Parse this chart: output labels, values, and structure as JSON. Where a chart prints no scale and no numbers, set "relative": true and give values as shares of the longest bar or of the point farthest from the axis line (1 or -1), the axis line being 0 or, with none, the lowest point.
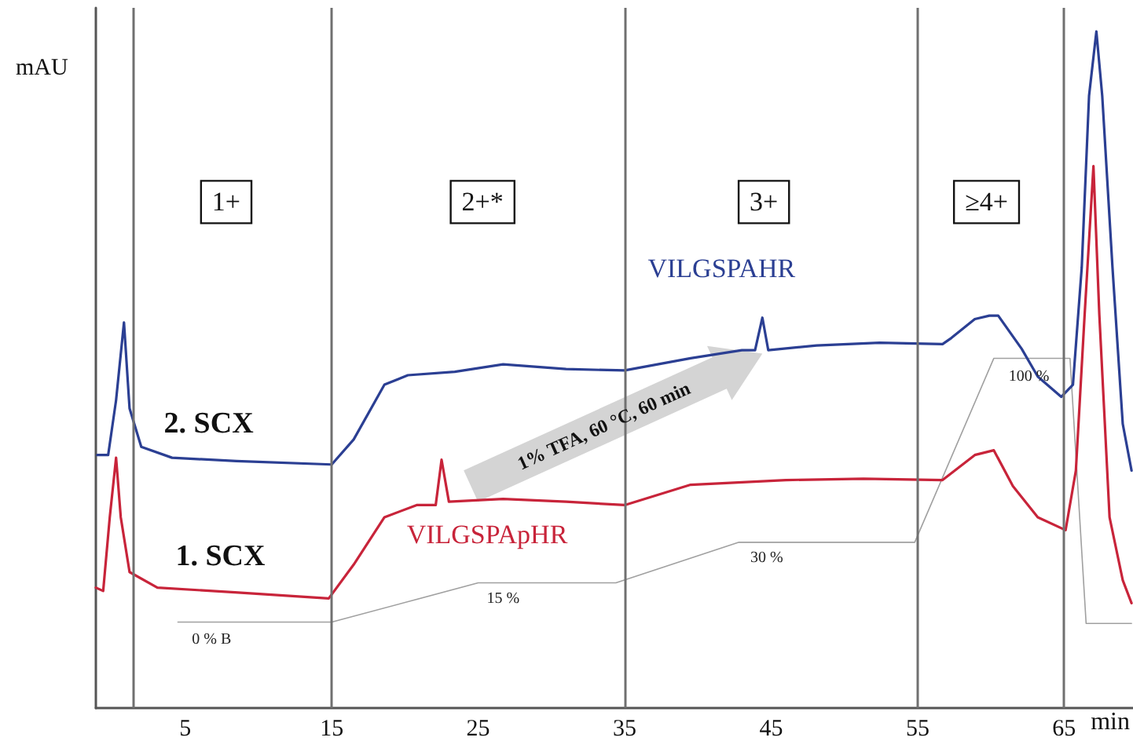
{
  "chart_data": {
    "type": "line",
    "relative": true,
    "xlabel": "min",
    "ylabel": "mAU",
    "xlim": [
      -1.1,
      69.7
    ],
    "xticks": [
      5,
      15,
      25,
      35,
      45,
      55,
      65
    ],
    "grid": false,
    "legend": false,
    "marker": "none",
    "line_style": "solid",
    "series": [
      {
        "name": "2. SCX",
        "color": "#2b3f93",
        "x": [
          -1.0,
          -0.26,
          0.28,
          0.82,
          1.2,
          2.0,
          4.1,
          8.5,
          15,
          16.5,
          18.6,
          20.2,
          23.4,
          26.7,
          31,
          35,
          39.5,
          43,
          43.9,
          44.4,
          44.8,
          48.1,
          52.4,
          56.7,
          57.3,
          58.9,
          59.9,
          60.5,
          62.1,
          63.2,
          64.8,
          65.6,
          66.2,
          66.7,
          67.2,
          67.6,
          68.3,
          69,
          69.6
        ],
        "values": [
          0.374,
          0.374,
          0.455,
          0.57,
          0.443,
          0.386,
          0.37,
          0.365,
          0.36,
          0.397,
          0.478,
          0.492,
          0.497,
          0.508,
          0.501,
          0.499,
          0.517,
          0.529,
          0.529,
          0.577,
          0.529,
          0.536,
          0.54,
          0.538,
          0.547,
          0.575,
          0.58,
          0.58,
          0.531,
          0.49,
          0.46,
          0.478,
          0.651,
          0.905,
          1.0,
          0.905,
          0.651,
          0.42,
          0.351
        ]
      },
      {
        "name": "1. SCX",
        "color": "#c8243a",
        "x": [
          -1.1,
          -0.6,
          -0.15,
          0.28,
          0.6,
          1.2,
          3.1,
          8.4,
          14.8,
          16.5,
          18.6,
          20.8,
          22.1,
          22.5,
          23,
          26.7,
          31,
          35,
          39.5,
          46,
          51.3,
          56.7,
          58.9,
          60.2,
          61.5,
          63.2,
          65.1,
          65.8,
          66.4,
          67.0,
          67.4,
          68.1,
          69,
          69.6
        ],
        "values": [
          0.178,
          0.173,
          0.282,
          0.37,
          0.282,
          0.201,
          0.178,
          0.171,
          0.162,
          0.212,
          0.282,
          0.3,
          0.3,
          0.367,
          0.305,
          0.309,
          0.305,
          0.3,
          0.33,
          0.337,
          0.339,
          0.337,
          0.374,
          0.381,
          0.328,
          0.282,
          0.263,
          0.351,
          0.582,
          0.801,
          0.582,
          0.282,
          0.189,
          0.155
        ]
      },
      {
        "color": "#a0a0a0",
        "x": [
          4.5,
          15,
          25,
          34.4,
          42.8,
          54.8,
          60.2,
          65.4,
          66.5,
          69.6
        ],
        "values": [
          0.127,
          0.127,
          0.185,
          0.185,
          0.245,
          0.245,
          0.517,
          0.517,
          0.125,
          0.125
        ]
      }
    ],
    "ref_lines": [
      {
        "axis": "x",
        "value": 1.5,
        "color": "#707070"
      },
      {
        "axis": "x",
        "value": 15,
        "color": "#707070"
      },
      {
        "axis": "x",
        "value": 35,
        "color": "#707070"
      },
      {
        "axis": "x",
        "value": 55,
        "color": "#707070"
      },
      {
        "axis": "x",
        "value": 65,
        "color": "#707070"
      }
    ],
    "annotations": [
      {
        "text": "1+",
        "x": 7.8,
        "y": 0.748
      },
      {
        "text": "2+*",
        "x": 25.3,
        "y": 0.748
      },
      {
        "text": "3+",
        "x": 44.5,
        "y": 0.748
      },
      {
        "text": "≥4+",
        "x": 59.7,
        "y": 0.748
      },
      {
        "text": "VILGSPAHR",
        "x": 44.4,
        "y": 0.577
      },
      {
        "text": "VILGSPApHR",
        "x": 22.5,
        "y": 0.367
      },
      {
        "text": "0 % B",
        "x": 6.8,
        "y": 0.127
      },
      {
        "text": "15 %",
        "x": 26.7,
        "y": 0.185
      },
      {
        "text": "30 %",
        "x": 44.7,
        "y": 0.245
      },
      {
        "text": "100 %",
        "x": 62.6,
        "y": 0.517
      },
      "1% TFA, 60 °C, 60 min"
    ]
  }
}
